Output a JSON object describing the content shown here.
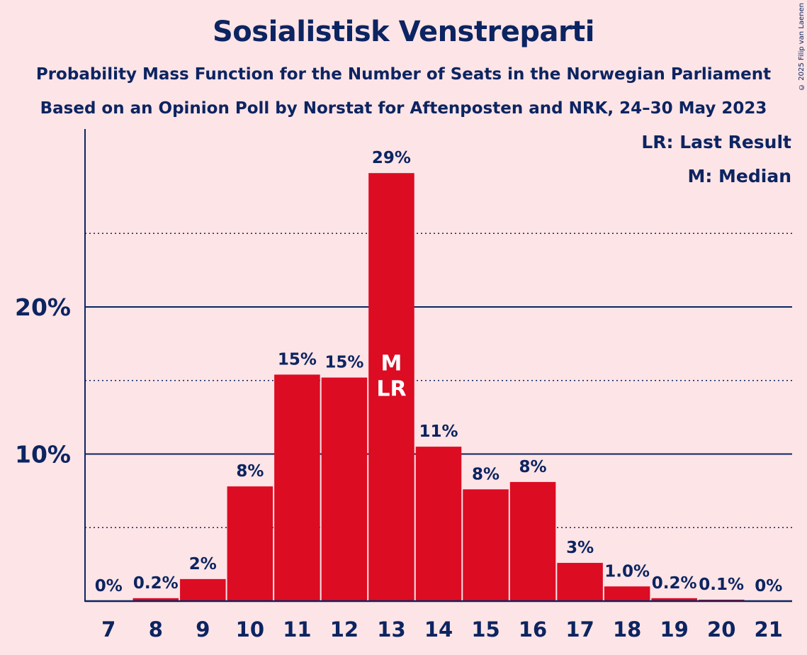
{
  "title": "Sosialistisk Venstreparti",
  "subtitle1": "Probability Mass Function for the Number of Seats in the Norwegian Parliament",
  "subtitle2": "Based on an Opinion Poll by Norstat for Aftenposten and NRK, 24–30 May 2023",
  "copyright": "© 2025 Filip van Laenen",
  "legend": {
    "lr": "LR: Last Result",
    "m": "M: Median"
  },
  "colors": {
    "background": "#fde4e6",
    "bar": "#dc0c23",
    "text": "#0c2461"
  },
  "chart_data": {
    "type": "bar",
    "categories": [
      "7",
      "8",
      "9",
      "10",
      "11",
      "12",
      "13",
      "14",
      "15",
      "16",
      "17",
      "18",
      "19",
      "20",
      "21"
    ],
    "values": [
      0,
      0.2,
      1.5,
      7.8,
      15.4,
      15.2,
      29.1,
      10.5,
      7.6,
      8.1,
      2.6,
      1.0,
      0.2,
      0.1,
      0
    ],
    "data_labels": [
      "0%",
      "0.2%",
      "2%",
      "8%",
      "15%",
      "15%",
      "29%",
      "11%",
      "8%",
      "8%",
      "3%",
      "1.0%",
      "0.2%",
      "0.1%",
      "0%"
    ],
    "yticks": [
      {
        "value": 10,
        "label": "10%"
      },
      {
        "value": 20,
        "label": "20%"
      }
    ],
    "minor_gridlines": [
      5,
      15,
      25
    ],
    "ylim": [
      0,
      32
    ],
    "median_category": "13",
    "median_label": "M",
    "last_result_category": "13",
    "last_result_label": "LR",
    "xlabel": "",
    "ylabel": "",
    "grid": true
  }
}
